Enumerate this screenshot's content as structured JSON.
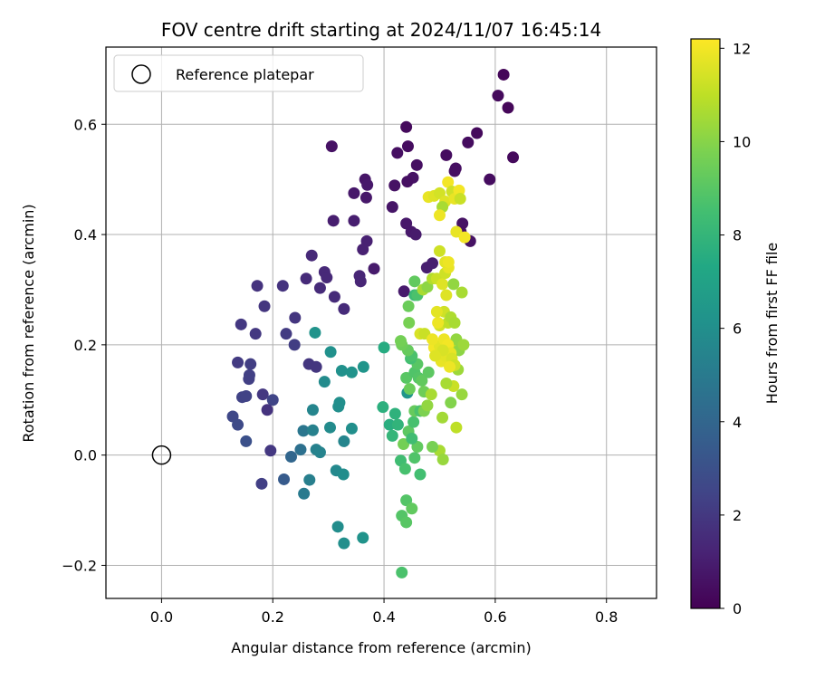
{
  "chart_data": {
    "type": "scatter",
    "title": "FOV centre drift starting at 2024/11/07 16:45:14",
    "xlabel": "Angular distance from reference (arcmin)",
    "ylabel": "Rotation from reference (arcmin)",
    "xlim": [
      -0.1,
      0.89
    ],
    "ylim": [
      -0.26,
      0.74
    ],
    "xticks": [
      0.0,
      0.2,
      0.4,
      0.6,
      0.8
    ],
    "xtick_labels": [
      "0.0",
      "0.2",
      "0.4",
      "0.6",
      "0.8"
    ],
    "yticks": [
      -0.2,
      0.0,
      0.2,
      0.4,
      0.6
    ],
    "ytick_labels": [
      "−0.2",
      "0.0",
      "0.2",
      "0.4",
      "0.6"
    ],
    "grid": true,
    "legend_position": "top-left",
    "legend": [
      "Reference platepar"
    ],
    "reference_point": {
      "x": 0.0,
      "y": 0.0
    },
    "colorbar": {
      "label": "Hours from first FF file",
      "range": [
        0,
        12.2
      ],
      "ticks": [
        0,
        2,
        4,
        6,
        8,
        10,
        12
      ],
      "tick_labels": [
        "0",
        "2",
        "4",
        "6",
        "8",
        "10",
        "12"
      ],
      "colormap": "viridis"
    },
    "points": [
      {
        "x": 0.615,
        "y": 0.69,
        "c": 0.2
      },
      {
        "x": 0.605,
        "y": 0.652,
        "c": 0.3
      },
      {
        "x": 0.623,
        "y": 0.63,
        "c": 0.2
      },
      {
        "x": 0.632,
        "y": 0.54,
        "c": 0.3
      },
      {
        "x": 0.59,
        "y": 0.5,
        "c": 0.4
      },
      {
        "x": 0.567,
        "y": 0.584,
        "c": 0.3
      },
      {
        "x": 0.551,
        "y": 0.567,
        "c": 0.4
      },
      {
        "x": 0.529,
        "y": 0.52,
        "c": 0.5
      },
      {
        "x": 0.512,
        "y": 0.544,
        "c": 0.4
      },
      {
        "x": 0.527,
        "y": 0.515,
        "c": 0.5
      },
      {
        "x": 0.541,
        "y": 0.42,
        "c": 0.6
      },
      {
        "x": 0.538,
        "y": 0.405,
        "c": 0.5
      },
      {
        "x": 0.555,
        "y": 0.388,
        "c": 0.6
      },
      {
        "x": 0.44,
        "y": 0.595,
        "c": 0.3
      },
      {
        "x": 0.443,
        "y": 0.56,
        "c": 0.4
      },
      {
        "x": 0.424,
        "y": 0.548,
        "c": 0.5
      },
      {
        "x": 0.459,
        "y": 0.526,
        "c": 0.5
      },
      {
        "x": 0.452,
        "y": 0.503,
        "c": 0.6
      },
      {
        "x": 0.442,
        "y": 0.496,
        "c": 0.5
      },
      {
        "x": 0.419,
        "y": 0.489,
        "c": 0.6
      },
      {
        "x": 0.415,
        "y": 0.45,
        "c": 0.7
      },
      {
        "x": 0.44,
        "y": 0.42,
        "c": 0.8
      },
      {
        "x": 0.449,
        "y": 0.405,
        "c": 0.8
      },
      {
        "x": 0.457,
        "y": 0.4,
        "c": 0.9
      },
      {
        "x": 0.382,
        "y": 0.338,
        "c": 0.9
      },
      {
        "x": 0.436,
        "y": 0.297,
        "c": 0.9
      },
      {
        "x": 0.477,
        "y": 0.34,
        "c": 1.0
      },
      {
        "x": 0.487,
        "y": 0.348,
        "c": 1.0
      },
      {
        "x": 0.306,
        "y": 0.56,
        "c": 0.6
      },
      {
        "x": 0.366,
        "y": 0.5,
        "c": 0.7
      },
      {
        "x": 0.37,
        "y": 0.49,
        "c": 0.8
      },
      {
        "x": 0.346,
        "y": 0.475,
        "c": 0.8
      },
      {
        "x": 0.368,
        "y": 0.467,
        "c": 0.8
      },
      {
        "x": 0.309,
        "y": 0.425,
        "c": 1.0
      },
      {
        "x": 0.346,
        "y": 0.425,
        "c": 1.0
      },
      {
        "x": 0.369,
        "y": 0.388,
        "c": 1.1
      },
      {
        "x": 0.362,
        "y": 0.373,
        "c": 1.1
      },
      {
        "x": 0.27,
        "y": 0.362,
        "c": 1.4
      },
      {
        "x": 0.293,
        "y": 0.332,
        "c": 1.4
      },
      {
        "x": 0.297,
        "y": 0.322,
        "c": 1.4
      },
      {
        "x": 0.26,
        "y": 0.32,
        "c": 1.5
      },
      {
        "x": 0.356,
        "y": 0.325,
        "c": 1.3
      },
      {
        "x": 0.358,
        "y": 0.315,
        "c": 1.3
      },
      {
        "x": 0.285,
        "y": 0.303,
        "c": 1.5
      },
      {
        "x": 0.311,
        "y": 0.287,
        "c": 1.5
      },
      {
        "x": 0.328,
        "y": 0.265,
        "c": 1.5
      },
      {
        "x": 0.172,
        "y": 0.307,
        "c": 1.8
      },
      {
        "x": 0.218,
        "y": 0.307,
        "c": 1.8
      },
      {
        "x": 0.185,
        "y": 0.27,
        "c": 1.9
      },
      {
        "x": 0.24,
        "y": 0.249,
        "c": 1.9
      },
      {
        "x": 0.143,
        "y": 0.237,
        "c": 2.0
      },
      {
        "x": 0.169,
        "y": 0.22,
        "c": 2.0
      },
      {
        "x": 0.224,
        "y": 0.22,
        "c": 2.1
      },
      {
        "x": 0.239,
        "y": 0.2,
        "c": 2.2
      },
      {
        "x": 0.265,
        "y": 0.165,
        "c": 1.9
      },
      {
        "x": 0.278,
        "y": 0.16,
        "c": 1.9
      },
      {
        "x": 0.137,
        "y": 0.168,
        "c": 2.1
      },
      {
        "x": 0.16,
        "y": 0.165,
        "c": 2.2
      },
      {
        "x": 0.158,
        "y": 0.145,
        "c": 2.3
      },
      {
        "x": 0.157,
        "y": 0.138,
        "c": 2.3
      },
      {
        "x": 0.145,
        "y": 0.105,
        "c": 2.4
      },
      {
        "x": 0.152,
        "y": 0.107,
        "c": 2.4
      },
      {
        "x": 0.182,
        "y": 0.11,
        "c": 2.0
      },
      {
        "x": 0.2,
        "y": 0.1,
        "c": 2.5
      },
      {
        "x": 0.19,
        "y": 0.082,
        "c": 1.8
      },
      {
        "x": 0.128,
        "y": 0.07,
        "c": 2.6
      },
      {
        "x": 0.137,
        "y": 0.055,
        "c": 2.7
      },
      {
        "x": 0.152,
        "y": 0.025,
        "c": 3.0
      },
      {
        "x": 0.196,
        "y": 0.008,
        "c": 2.0
      },
      {
        "x": 0.18,
        "y": -0.052,
        "c": 2.3
      },
      {
        "x": 0.22,
        "y": -0.044,
        "c": 3.5
      },
      {
        "x": 0.233,
        "y": -0.003,
        "c": 4.0
      },
      {
        "x": 0.25,
        "y": 0.01,
        "c": 4.5
      },
      {
        "x": 0.255,
        "y": 0.044,
        "c": 4.8
      },
      {
        "x": 0.256,
        "y": -0.07,
        "c": 5.0
      },
      {
        "x": 0.266,
        "y": -0.045,
        "c": 5.2
      },
      {
        "x": 0.272,
        "y": 0.045,
        "c": 5.3
      },
      {
        "x": 0.278,
        "y": 0.01,
        "c": 5.3
      },
      {
        "x": 0.285,
        "y": 0.005,
        "c": 5.4
      },
      {
        "x": 0.272,
        "y": 0.082,
        "c": 5.5
      },
      {
        "x": 0.293,
        "y": 0.133,
        "c": 5.8
      },
      {
        "x": 0.276,
        "y": 0.222,
        "c": 6.2
      },
      {
        "x": 0.304,
        "y": 0.187,
        "c": 6.1
      },
      {
        "x": 0.32,
        "y": 0.095,
        "c": 6.0
      },
      {
        "x": 0.318,
        "y": 0.088,
        "c": 6.0
      },
      {
        "x": 0.303,
        "y": 0.05,
        "c": 5.8
      },
      {
        "x": 0.328,
        "y": 0.025,
        "c": 5.5
      },
      {
        "x": 0.314,
        "y": -0.028,
        "c": 5.7
      },
      {
        "x": 0.327,
        "y": -0.035,
        "c": 5.9
      },
      {
        "x": 0.317,
        "y": -0.13,
        "c": 5.9
      },
      {
        "x": 0.328,
        "y": -0.16,
        "c": 6.0
      },
      {
        "x": 0.362,
        "y": -0.15,
        "c": 6.2
      },
      {
        "x": 0.324,
        "y": 0.153,
        "c": 6.1
      },
      {
        "x": 0.342,
        "y": 0.15,
        "c": 6.2
      },
      {
        "x": 0.363,
        "y": 0.16,
        "c": 6.3
      },
      {
        "x": 0.342,
        "y": 0.048,
        "c": 6.0
      },
      {
        "x": 0.4,
        "y": 0.195,
        "c": 7.5
      },
      {
        "x": 0.398,
        "y": 0.087,
        "c": 7.7
      },
      {
        "x": 0.41,
        "y": 0.055,
        "c": 7.6
      },
      {
        "x": 0.42,
        "y": 0.075,
        "c": 7.8
      },
      {
        "x": 0.425,
        "y": 0.055,
        "c": 7.9
      },
      {
        "x": 0.415,
        "y": 0.035,
        "c": 8.0
      },
      {
        "x": 0.43,
        "y": -0.01,
        "c": 8.4
      },
      {
        "x": 0.438,
        "y": -0.025,
        "c": 8.6
      },
      {
        "x": 0.44,
        "y": -0.082,
        "c": 8.9
      },
      {
        "x": 0.45,
        "y": -0.097,
        "c": 9.2
      },
      {
        "x": 0.432,
        "y": -0.11,
        "c": 8.9
      },
      {
        "x": 0.44,
        "y": -0.122,
        "c": 9.0
      },
      {
        "x": 0.432,
        "y": -0.213,
        "c": 8.7
      },
      {
        "x": 0.455,
        "y": -0.005,
        "c": 8.8
      },
      {
        "x": 0.46,
        "y": 0.015,
        "c": 9.2
      },
      {
        "x": 0.465,
        "y": -0.035,
        "c": 8.5
      },
      {
        "x": 0.435,
        "y": 0.02,
        "c": 9.6
      },
      {
        "x": 0.444,
        "y": 0.043,
        "c": 9.1
      },
      {
        "x": 0.45,
        "y": 0.03,
        "c": 8.4
      },
      {
        "x": 0.453,
        "y": 0.06,
        "c": 8.6
      },
      {
        "x": 0.442,
        "y": 0.113,
        "c": 6.3
      },
      {
        "x": 0.446,
        "y": 0.12,
        "c": 9.4
      },
      {
        "x": 0.44,
        "y": 0.14,
        "c": 9.0
      },
      {
        "x": 0.455,
        "y": 0.08,
        "c": 9.3
      },
      {
        "x": 0.455,
        "y": 0.15,
        "c": 8.8
      },
      {
        "x": 0.46,
        "y": 0.165,
        "c": 9.0
      },
      {
        "x": 0.448,
        "y": 0.175,
        "c": 8.5
      },
      {
        "x": 0.45,
        "y": 0.18,
        "c": 8.7
      },
      {
        "x": 0.443,
        "y": 0.19,
        "c": 9.3
      },
      {
        "x": 0.432,
        "y": 0.2,
        "c": 9.5
      },
      {
        "x": 0.43,
        "y": 0.207,
        "c": 9.6
      },
      {
        "x": 0.462,
        "y": 0.14,
        "c": 8.9
      },
      {
        "x": 0.468,
        "y": 0.135,
        "c": 9.2
      },
      {
        "x": 0.472,
        "y": 0.115,
        "c": 9.5
      },
      {
        "x": 0.465,
        "y": 0.08,
        "c": 8.7
      },
      {
        "x": 0.472,
        "y": 0.08,
        "c": 9.8
      },
      {
        "x": 0.478,
        "y": 0.09,
        "c": 10.2
      },
      {
        "x": 0.48,
        "y": 0.15,
        "c": 9.1
      },
      {
        "x": 0.485,
        "y": 0.11,
        "c": 10.6
      },
      {
        "x": 0.445,
        "y": 0.24,
        "c": 9.7
      },
      {
        "x": 0.444,
        "y": 0.27,
        "c": 9.4
      },
      {
        "x": 0.455,
        "y": 0.29,
        "c": 8.3
      },
      {
        "x": 0.46,
        "y": 0.29,
        "c": 8.7
      },
      {
        "x": 0.455,
        "y": 0.315,
        "c": 9.2
      },
      {
        "x": 0.47,
        "y": 0.3,
        "c": 10.6
      },
      {
        "x": 0.478,
        "y": 0.305,
        "c": 10.1
      },
      {
        "x": 0.487,
        "y": 0.32,
        "c": 10.8
      },
      {
        "x": 0.495,
        "y": 0.32,
        "c": 11.2
      },
      {
        "x": 0.505,
        "y": 0.31,
        "c": 11.6
      },
      {
        "x": 0.512,
        "y": 0.29,
        "c": 11.6
      },
      {
        "x": 0.51,
        "y": 0.33,
        "c": 11.3
      },
      {
        "x": 0.516,
        "y": 0.34,
        "c": 11.8
      },
      {
        "x": 0.525,
        "y": 0.31,
        "c": 10.2
      },
      {
        "x": 0.54,
        "y": 0.295,
        "c": 10.6
      },
      {
        "x": 0.5,
        "y": 0.37,
        "c": 11.3
      },
      {
        "x": 0.51,
        "y": 0.35,
        "c": 11.7
      },
      {
        "x": 0.5,
        "y": 0.235,
        "c": 11.4
      },
      {
        "x": 0.508,
        "y": 0.26,
        "c": 11.3
      },
      {
        "x": 0.515,
        "y": 0.24,
        "c": 11.0
      },
      {
        "x": 0.52,
        "y": 0.25,
        "c": 10.7
      },
      {
        "x": 0.527,
        "y": 0.24,
        "c": 10.6
      },
      {
        "x": 0.522,
        "y": 0.2,
        "c": 10.9
      },
      {
        "x": 0.53,
        "y": 0.21,
        "c": 10.2
      },
      {
        "x": 0.535,
        "y": 0.19,
        "c": 10.1
      },
      {
        "x": 0.543,
        "y": 0.2,
        "c": 10.4
      },
      {
        "x": 0.54,
        "y": 0.11,
        "c": 10.3
      },
      {
        "x": 0.533,
        "y": 0.155,
        "c": 10.4
      },
      {
        "x": 0.525,
        "y": 0.125,
        "c": 11.2
      },
      {
        "x": 0.512,
        "y": 0.13,
        "c": 10.6
      },
      {
        "x": 0.505,
        "y": 0.068,
        "c": 10.5
      },
      {
        "x": 0.52,
        "y": 0.095,
        "c": 9.9
      },
      {
        "x": 0.53,
        "y": 0.05,
        "c": 11.0
      },
      {
        "x": 0.503,
        "y": 0.17,
        "c": 11.8
      },
      {
        "x": 0.495,
        "y": 0.185,
        "c": 11.6
      },
      {
        "x": 0.49,
        "y": 0.195,
        "c": 12.0
      },
      {
        "x": 0.5,
        "y": 0.198,
        "c": 11.7
      },
      {
        "x": 0.508,
        "y": 0.21,
        "c": 11.9
      },
      {
        "x": 0.515,
        "y": 0.2,
        "c": 12.0
      },
      {
        "x": 0.52,
        "y": 0.185,
        "c": 11.8
      },
      {
        "x": 0.51,
        "y": 0.18,
        "c": 11.7
      },
      {
        "x": 0.522,
        "y": 0.175,
        "c": 11.5
      },
      {
        "x": 0.527,
        "y": 0.163,
        "c": 11.3
      },
      {
        "x": 0.518,
        "y": 0.16,
        "c": 11.9
      },
      {
        "x": 0.506,
        "y": 0.19,
        "c": 11.5
      },
      {
        "x": 0.497,
        "y": 0.24,
        "c": 11.9
      },
      {
        "x": 0.495,
        "y": 0.26,
        "c": 11.7
      },
      {
        "x": 0.465,
        "y": 0.22,
        "c": 11.5
      },
      {
        "x": 0.473,
        "y": 0.22,
        "c": 11.2
      },
      {
        "x": 0.487,
        "y": 0.21,
        "c": 11.9
      },
      {
        "x": 0.492,
        "y": 0.18,
        "c": 11.6
      },
      {
        "x": 0.5,
        "y": 0.008,
        "c": 10.6
      },
      {
        "x": 0.487,
        "y": 0.015,
        "c": 9.7
      },
      {
        "x": 0.506,
        "y": -0.008,
        "c": 10.3
      },
      {
        "x": 0.48,
        "y": 0.468,
        "c": 11.8
      },
      {
        "x": 0.49,
        "y": 0.47,
        "c": 11.6
      },
      {
        "x": 0.5,
        "y": 0.475,
        "c": 11.4
      },
      {
        "x": 0.515,
        "y": 0.495,
        "c": 12.0
      },
      {
        "x": 0.522,
        "y": 0.478,
        "c": 11.3
      },
      {
        "x": 0.51,
        "y": 0.46,
        "c": 11.6
      },
      {
        "x": 0.505,
        "y": 0.45,
        "c": 10.6
      },
      {
        "x": 0.5,
        "y": 0.435,
        "c": 11.9
      },
      {
        "x": 0.527,
        "y": 0.465,
        "c": 11.8
      },
      {
        "x": 0.535,
        "y": 0.48,
        "c": 12.0
      },
      {
        "x": 0.53,
        "y": 0.405,
        "c": 11.8
      },
      {
        "x": 0.545,
        "y": 0.395,
        "c": 12.0
      },
      {
        "x": 0.537,
        "y": 0.465,
        "c": 11.2
      },
      {
        "x": 0.516,
        "y": 0.35,
        "c": 11.9
      }
    ]
  }
}
